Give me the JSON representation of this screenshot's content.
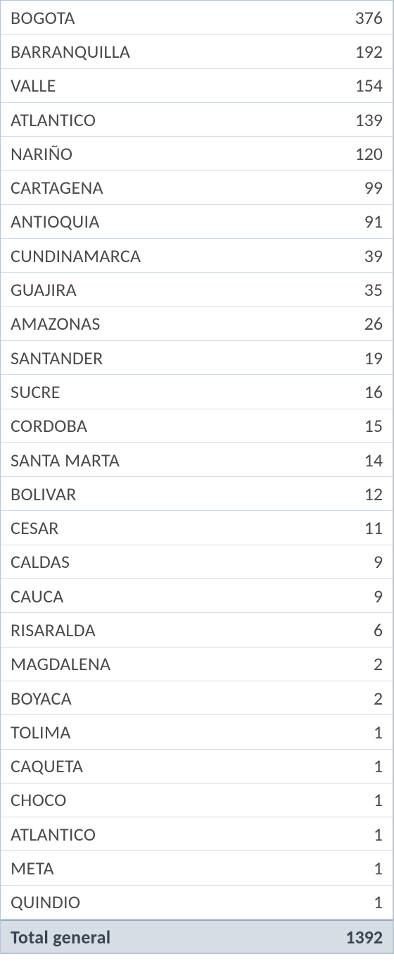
{
  "table": {
    "type": "table",
    "columns": [
      "region",
      "count"
    ],
    "column_alignment": [
      "left",
      "right"
    ],
    "background_color": "#ffffff",
    "border_color": "#b8c5d3",
    "row_border_color": "#d4dce6",
    "text_color": "#4a4a4a",
    "font_size_pt": 20,
    "total_row_background": "#d6dde5",
    "total_row_border_top": "#9aaabf",
    "total_row_text_color": "#3a4452",
    "rows": [
      {
        "region": "BOGOTA",
        "count": 376
      },
      {
        "region": "BARRANQUILLA",
        "count": 192
      },
      {
        "region": "VALLE",
        "count": 154
      },
      {
        "region": "ATLANTICO",
        "count": 139
      },
      {
        "region": "NARIÑO",
        "count": 120
      },
      {
        "region": "CARTAGENA",
        "count": 99
      },
      {
        "region": "ANTIOQUIA",
        "count": 91
      },
      {
        "region": "CUNDINAMARCA",
        "count": 39
      },
      {
        "region": "GUAJIRA",
        "count": 35
      },
      {
        "region": "AMAZONAS",
        "count": 26
      },
      {
        "region": "SANTANDER",
        "count": 19
      },
      {
        "region": "SUCRE",
        "count": 16
      },
      {
        "region": "CORDOBA",
        "count": 15
      },
      {
        "region": "SANTA MARTA",
        "count": 14
      },
      {
        "region": "BOLIVAR",
        "count": 12
      },
      {
        "region": "CESAR",
        "count": 11
      },
      {
        "region": "CALDAS",
        "count": 9
      },
      {
        "region": "CAUCA",
        "count": 9
      },
      {
        "region": "RISARALDA",
        "count": 6
      },
      {
        "region": "MAGDALENA",
        "count": 2
      },
      {
        "region": "BOYACA",
        "count": 2
      },
      {
        "region": "TOLIMA",
        "count": 1
      },
      {
        "region": "CAQUETA",
        "count": 1
      },
      {
        "region": "CHOCO",
        "count": 1
      },
      {
        "region": "ATLANTICO",
        "count": 1
      },
      {
        "region": "META",
        "count": 1
      },
      {
        "region": "QUINDIO",
        "count": 1
      }
    ],
    "total": {
      "label": "Total general",
      "value": 1392
    }
  }
}
